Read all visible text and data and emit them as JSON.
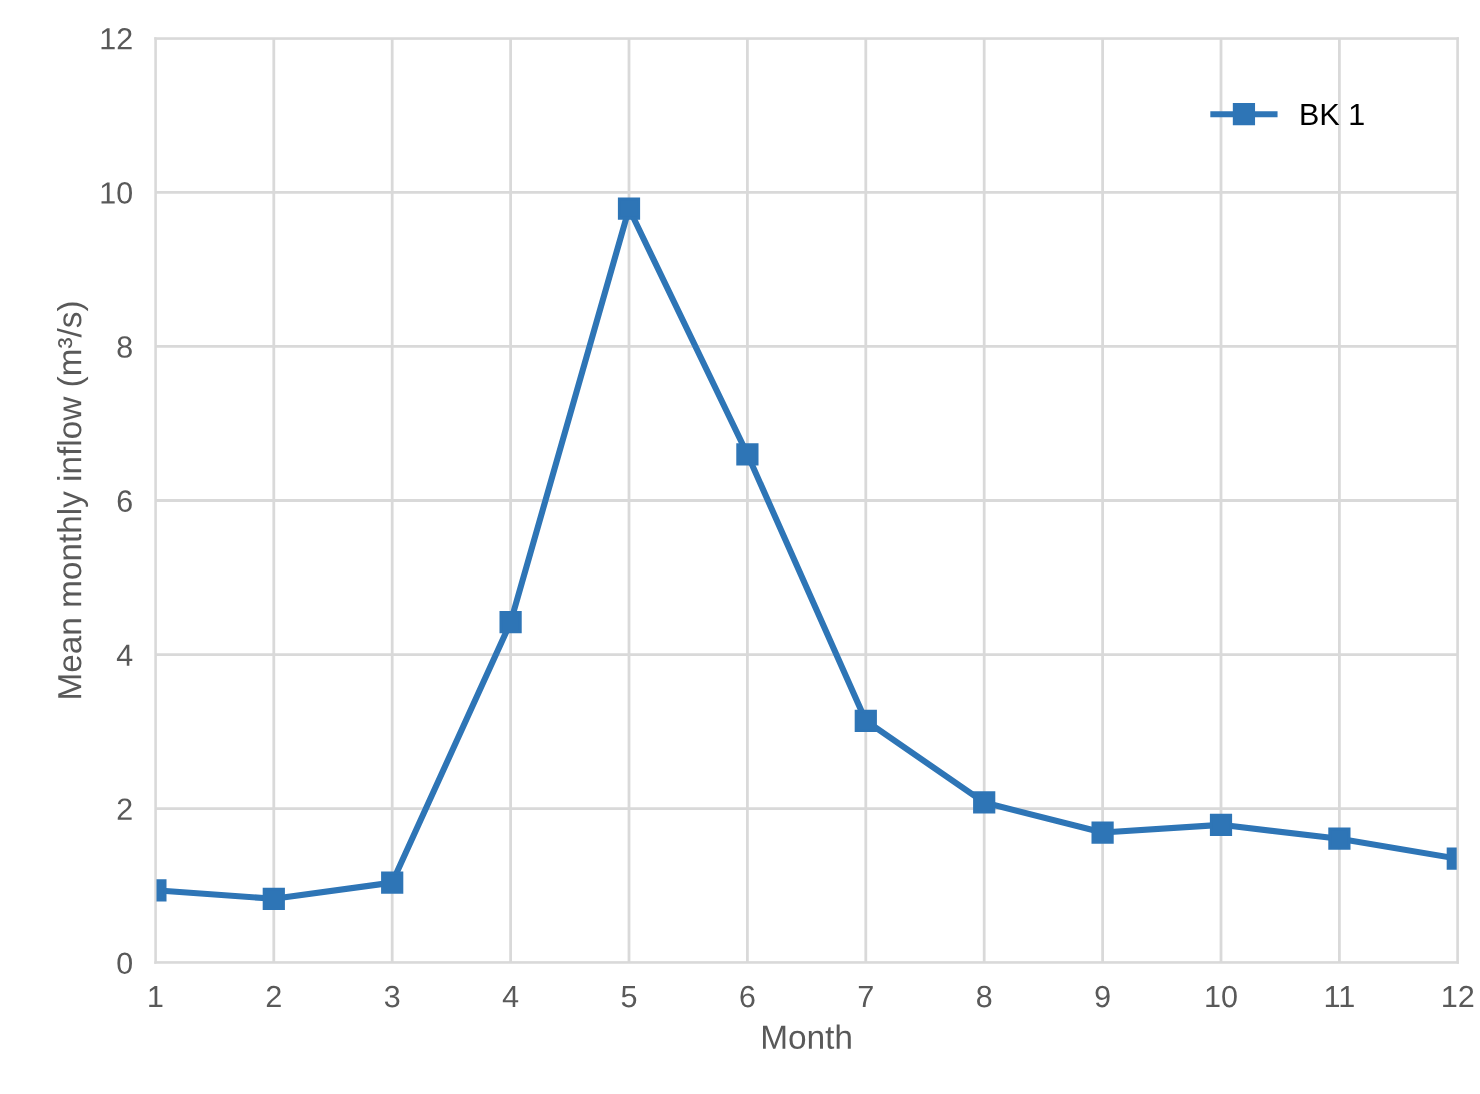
{
  "chart_data": {
    "type": "line",
    "xlabel": "Month",
    "ylabel": "Mean monthly inflow (m³/s)",
    "x": [
      1,
      2,
      3,
      4,
      5,
      6,
      7,
      8,
      9,
      10,
      11,
      12
    ],
    "series": [
      {
        "name": "BK 1",
        "color": "#2e75b6",
        "values": [
          0.94,
          0.83,
          1.04,
          4.42,
          9.79,
          6.6,
          3.14,
          2.08,
          1.69,
          1.79,
          1.61,
          1.35
        ]
      }
    ],
    "xlim": [
      1,
      12
    ],
    "xticks": [
      1,
      2,
      3,
      4,
      5,
      6,
      7,
      8,
      9,
      10,
      11,
      12
    ],
    "ylim": [
      0,
      12
    ],
    "yticks": [
      0,
      2,
      4,
      6,
      8,
      10,
      12
    ],
    "grid": true,
    "legend": "top right",
    "marker": "square",
    "line_style": "solid"
  }
}
